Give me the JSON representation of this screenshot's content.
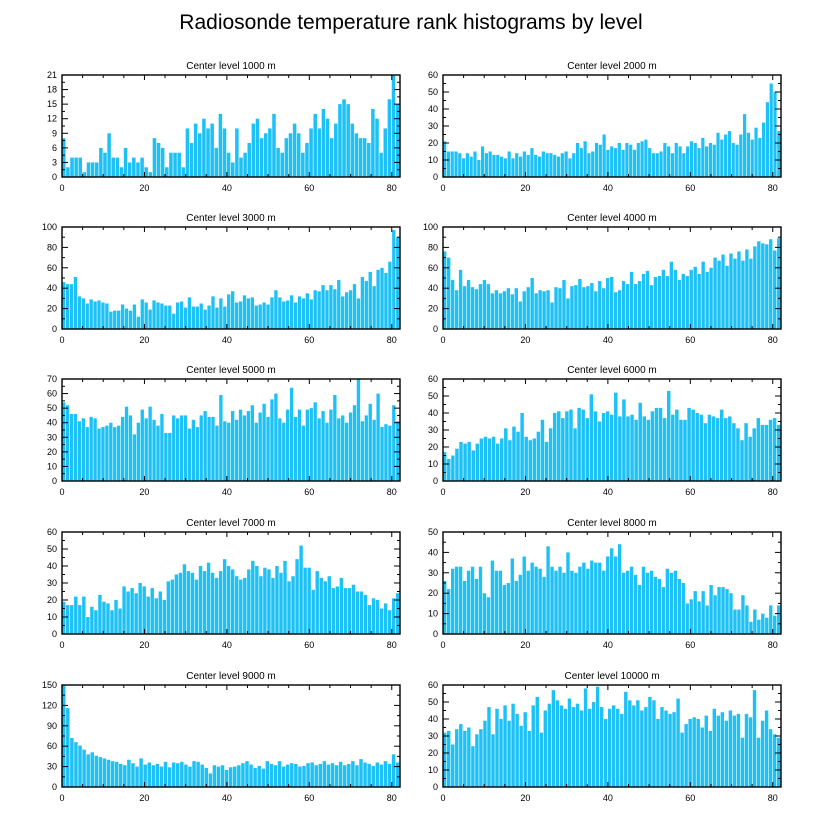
{
  "figure_title": "Radiosonde temperature rank histograms by level",
  "colors": {
    "bar": "#1ec1f5",
    "axis": "#000000",
    "background": "#ffffff"
  },
  "chart_data": [
    {
      "type": "bar",
      "title": "Center level 1000 m",
      "xlim": [
        0,
        82
      ],
      "ylim": [
        0,
        21
      ],
      "xticks": [
        0,
        20,
        40,
        60,
        80
      ],
      "yticks": [
        0,
        3,
        6,
        9,
        12,
        15,
        18,
        21
      ],
      "values": [
        8,
        2,
        4,
        4,
        4,
        1,
        3,
        3,
        3,
        6,
        5,
        9,
        4,
        4,
        2,
        6,
        3,
        4,
        3,
        4,
        2,
        1,
        8,
        7,
        6,
        2,
        5,
        5,
        5,
        2,
        10,
        7,
        11,
        9,
        12,
        10,
        11,
        6,
        13,
        10,
        5,
        3,
        10,
        4,
        5,
        7,
        11,
        12,
        8,
        9,
        10,
        13,
        6,
        5,
        8,
        9,
        11,
        9,
        5,
        7,
        10,
        13,
        10,
        14,
        12,
        8,
        11,
        15,
        16,
        15,
        11,
        9,
        8,
        8,
        7,
        14,
        12,
        5,
        10,
        16,
        21,
        15
      ]
    },
    {
      "type": "bar",
      "title": "Center level 2000 m",
      "xlim": [
        0,
        82
      ],
      "ylim": [
        0,
        60
      ],
      "xticks": [
        0,
        20,
        40,
        60,
        80
      ],
      "yticks": [
        0,
        10,
        20,
        30,
        40,
        50,
        60
      ],
      "values": [
        21,
        15,
        15,
        15,
        14,
        11,
        14,
        12,
        15,
        10,
        18,
        14,
        15,
        13,
        13,
        12,
        11,
        15,
        11,
        14,
        12,
        15,
        13,
        17,
        13,
        12,
        15,
        14,
        14,
        13,
        12,
        14,
        15,
        11,
        14,
        20,
        17,
        21,
        14,
        15,
        20,
        19,
        25,
        16,
        18,
        17,
        20,
        16,
        20,
        19,
        16,
        20,
        21,
        22,
        17,
        14,
        14,
        15,
        20,
        18,
        14,
        20,
        18,
        14,
        18,
        21,
        20,
        17,
        23,
        18,
        20,
        19,
        26,
        22,
        25,
        27,
        20,
        19,
        25,
        37,
        26,
        22,
        29,
        23,
        32,
        44,
        55,
        50,
        27
      ]
    },
    {
      "type": "bar",
      "title": "Center level 3000 m",
      "xlim": [
        0,
        82
      ],
      "ylim": [
        0,
        100
      ],
      "xticks": [
        0,
        20,
        40,
        60,
        80
      ],
      "yticks": [
        0,
        20,
        40,
        60,
        80,
        100
      ],
      "values": [
        46,
        44,
        44,
        51,
        32,
        30,
        25,
        29,
        27,
        28,
        26,
        25,
        17,
        18,
        18,
        24,
        20,
        18,
        24,
        12,
        29,
        26,
        19,
        28,
        26,
        25,
        23,
        23,
        15,
        26,
        27,
        21,
        31,
        22,
        22,
        25,
        19,
        23,
        32,
        21,
        30,
        22,
        34,
        37,
        26,
        27,
        33,
        30,
        31,
        23,
        24,
        26,
        24,
        31,
        38,
        31,
        27,
        28,
        33,
        26,
        32,
        30,
        35,
        29,
        38,
        37,
        43,
        38,
        43,
        39,
        48,
        32,
        36,
        38,
        44,
        30,
        51,
        47,
        56,
        42,
        58,
        60,
        55,
        66,
        97,
        90
      ]
    },
    {
      "type": "bar",
      "title": "Center level 4000 m",
      "xlim": [
        0,
        82
      ],
      "ylim": [
        0,
        100
      ],
      "xticks": [
        0,
        20,
        40,
        60,
        80
      ],
      "yticks": [
        0,
        20,
        40,
        60,
        80,
        100
      ],
      "values": [
        76,
        70,
        48,
        38,
        58,
        42,
        48,
        41,
        39,
        44,
        48,
        44,
        35,
        38,
        35,
        37,
        40,
        34,
        40,
        27,
        37,
        41,
        50,
        35,
        38,
        37,
        38,
        26,
        41,
        40,
        48,
        30,
        42,
        43,
        49,
        41,
        42,
        45,
        37,
        47,
        40,
        50,
        51,
        36,
        38,
        47,
        44,
        56,
        44,
        47,
        54,
        57,
        43,
        51,
        52,
        58,
        52,
        66,
        58,
        48,
        54,
        52,
        58,
        61,
        54,
        66,
        56,
        60,
        70,
        67,
        73,
        62,
        74,
        69,
        76,
        67,
        78,
        69,
        81,
        86,
        84,
        83,
        88,
        77,
        89
      ]
    },
    {
      "type": "bar",
      "title": "Center level 5000 m",
      "xlim": [
        0,
        82
      ],
      "ylim": [
        0,
        70
      ],
      "xticks": [
        0,
        20,
        40,
        60,
        80
      ],
      "yticks": [
        0,
        10,
        20,
        30,
        40,
        50,
        60,
        70
      ],
      "values": [
        54,
        52,
        46,
        46,
        41,
        43,
        37,
        44,
        43,
        36,
        37,
        38,
        40,
        37,
        38,
        44,
        51,
        45,
        32,
        40,
        49,
        43,
        51,
        42,
        38,
        46,
        33,
        33,
        45,
        43,
        45,
        45,
        36,
        42,
        37,
        45,
        48,
        44,
        44,
        38,
        59,
        41,
        40,
        48,
        42,
        49,
        45,
        48,
        52,
        40,
        47,
        53,
        44,
        56,
        60,
        43,
        40,
        49,
        64,
        44,
        49,
        38,
        49,
        50,
        54,
        43,
        48,
        40,
        49,
        59,
        43,
        45,
        40,
        47,
        52,
        70,
        41,
        45,
        53,
        42,
        60,
        37,
        39,
        38,
        52,
        41
      ]
    },
    {
      "type": "bar",
      "title": "Center level 6000 m",
      "xlim": [
        0,
        82
      ],
      "ylim": [
        0,
        60
      ],
      "xticks": [
        0,
        20,
        40,
        60,
        80
      ],
      "yticks": [
        0,
        10,
        20,
        30,
        40,
        50,
        60
      ],
      "values": [
        17,
        13,
        15,
        19,
        23,
        22,
        23,
        18,
        22,
        25,
        26,
        25,
        26,
        22,
        25,
        31,
        24,
        32,
        29,
        40,
        26,
        24,
        25,
        29,
        36,
        23,
        31,
        40,
        41,
        37,
        41,
        42,
        31,
        43,
        42,
        37,
        51,
        41,
        35,
        40,
        41,
        39,
        52,
        38,
        48,
        38,
        39,
        36,
        46,
        38,
        36,
        41,
        43,
        43,
        37,
        53,
        39,
        42,
        36,
        36,
        43,
        42,
        40,
        39,
        34,
        39,
        38,
        37,
        42,
        37,
        38,
        34,
        31,
        24,
        34,
        26,
        31,
        37,
        33,
        33,
        36,
        37,
        33
      ]
    },
    {
      "type": "bar",
      "title": "Center level 7000 m",
      "xlim": [
        0,
        82
      ],
      "ylim": [
        0,
        60
      ],
      "xticks": [
        0,
        20,
        40,
        60,
        80
      ],
      "yticks": [
        0,
        10,
        20,
        30,
        40,
        50,
        60
      ],
      "values": [
        19,
        17,
        17,
        22,
        17,
        22,
        10,
        16,
        14,
        23,
        19,
        18,
        14,
        20,
        15,
        28,
        25,
        27,
        24,
        30,
        28,
        22,
        27,
        21,
        25,
        20,
        31,
        32,
        35,
        36,
        41,
        37,
        36,
        32,
        40,
        37,
        42,
        36,
        33,
        37,
        44,
        40,
        38,
        34,
        32,
        33,
        38,
        43,
        40,
        34,
        39,
        38,
        33,
        40,
        36,
        43,
        31,
        34,
        44,
        52,
        39,
        39,
        26,
        37,
        33,
        31,
        34,
        27,
        28,
        33,
        27,
        27,
        29,
        25,
        25,
        23,
        17,
        21,
        20,
        15,
        18,
        14,
        21,
        24
      ]
    },
    {
      "type": "bar",
      "title": "Center level 8000 m",
      "xlim": [
        0,
        82
      ],
      "ylim": [
        0,
        50
      ],
      "xticks": [
        0,
        20,
        40,
        60,
        80
      ],
      "yticks": [
        0,
        10,
        20,
        30,
        40,
        50
      ],
      "values": [
        26,
        22,
        32,
        33,
        33,
        26,
        31,
        33,
        27,
        33,
        20,
        18,
        36,
        31,
        31,
        24,
        25,
        37,
        26,
        29,
        38,
        31,
        35,
        33,
        32,
        28,
        43,
        33,
        31,
        33,
        30,
        40,
        31,
        30,
        33,
        35,
        32,
        36,
        35,
        35,
        31,
        38,
        42,
        38,
        44,
        30,
        31,
        33,
        29,
        24,
        33,
        30,
        31,
        28,
        27,
        23,
        32,
        30,
        31,
        27,
        25,
        15,
        17,
        21,
        16,
        21,
        14,
        24,
        19,
        23,
        23,
        22,
        20,
        12,
        12,
        19,
        14,
        6,
        12,
        7,
        10,
        8,
        14,
        9,
        14
      ]
    },
    {
      "type": "bar",
      "title": "Center level 9000 m",
      "xlim": [
        0,
        82
      ],
      "ylim": [
        0,
        150
      ],
      "xticks": [
        0,
        20,
        40,
        60,
        80
      ],
      "yticks": [
        0,
        30,
        60,
        90,
        120,
        150
      ],
      "values": [
        152,
        116,
        72,
        66,
        61,
        55,
        48,
        51,
        46,
        44,
        42,
        40,
        38,
        37,
        34,
        32,
        40,
        35,
        30,
        42,
        33,
        36,
        32,
        34,
        30,
        37,
        29,
        36,
        35,
        37,
        33,
        30,
        38,
        37,
        33,
        28,
        20,
        32,
        30,
        32,
        25,
        29,
        30,
        32,
        35,
        38,
        33,
        28,
        31,
        27,
        38,
        34,
        32,
        38,
        30,
        33,
        35,
        34,
        30,
        31,
        35,
        36,
        32,
        34,
        38,
        33,
        35,
        32,
        37,
        32,
        34,
        38,
        32,
        41,
        36,
        34,
        31,
        36,
        33,
        38,
        34,
        48,
        36
      ]
    },
    {
      "type": "bar",
      "title": "Center level 10000 m",
      "xlim": [
        0,
        82
      ],
      "ylim": [
        0,
        60
      ],
      "xticks": [
        0,
        20,
        40,
        60,
        80
      ],
      "yticks": [
        0,
        10,
        20,
        30,
        40,
        50,
        60
      ],
      "values": [
        32,
        33,
        25,
        34,
        37,
        33,
        35,
        24,
        31,
        34,
        39,
        47,
        31,
        46,
        40,
        48,
        39,
        49,
        43,
        36,
        44,
        33,
        48,
        53,
        32,
        45,
        49,
        57,
        51,
        48,
        46,
        52,
        47,
        49,
        45,
        58,
        46,
        50,
        59,
        47,
        40,
        46,
        48,
        46,
        43,
        56,
        51,
        48,
        51,
        45,
        47,
        53,
        51,
        40,
        47,
        45,
        43,
        44,
        52,
        32,
        37,
        40,
        41,
        40,
        35,
        42,
        33,
        46,
        42,
        44,
        39,
        45,
        42,
        43,
        29,
        43,
        41,
        57,
        29,
        39,
        45,
        34,
        31,
        29
      ]
    }
  ]
}
